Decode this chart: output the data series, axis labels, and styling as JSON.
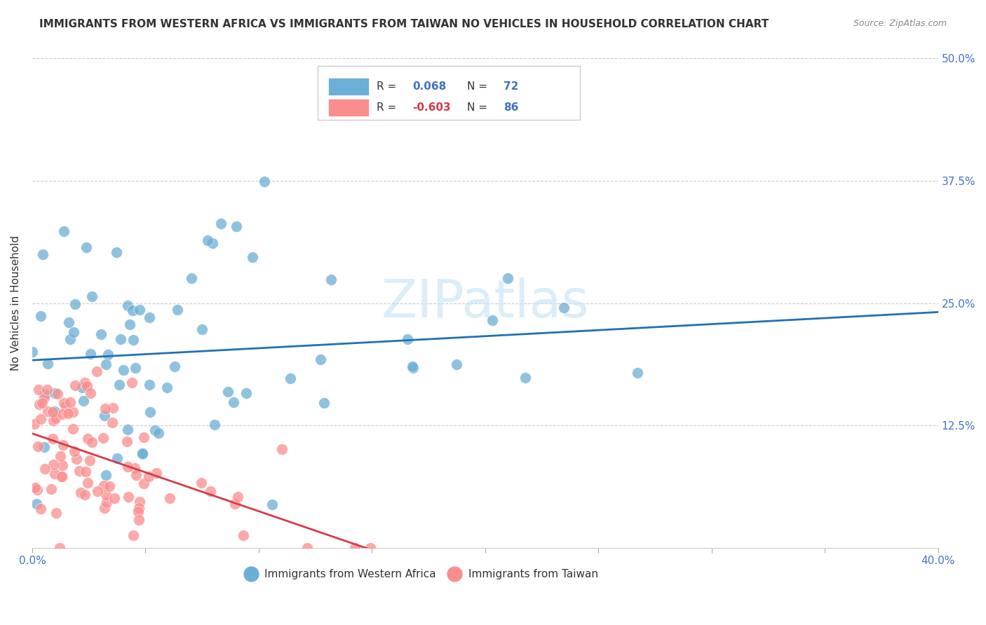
{
  "title": "IMMIGRANTS FROM WESTERN AFRICA VS IMMIGRANTS FROM TAIWAN NO VEHICLES IN HOUSEHOLD CORRELATION CHART",
  "source": "Source: ZipAtlas.com",
  "xlabel": "",
  "ylabel": "No Vehicles in Household",
  "xlim": [
    0.0,
    0.4
  ],
  "ylim": [
    0.0,
    0.5
  ],
  "series1_label": "Immigrants from Western Africa",
  "series2_label": "Immigrants from Taiwan",
  "series1_R": 0.068,
  "series1_N": 72,
  "series2_R": -0.603,
  "series2_N": 86,
  "series1_color": "#6baed6",
  "series2_color": "#fc8d8d",
  "series1_line_color": "#2171b5",
  "series2_line_color": "#d63a4a",
  "watermark": "ZIPatlas",
  "background_color": "#ffffff",
  "title_color": "#333333",
  "axis_color": "#4472c4",
  "grid_color": "#cccccc"
}
